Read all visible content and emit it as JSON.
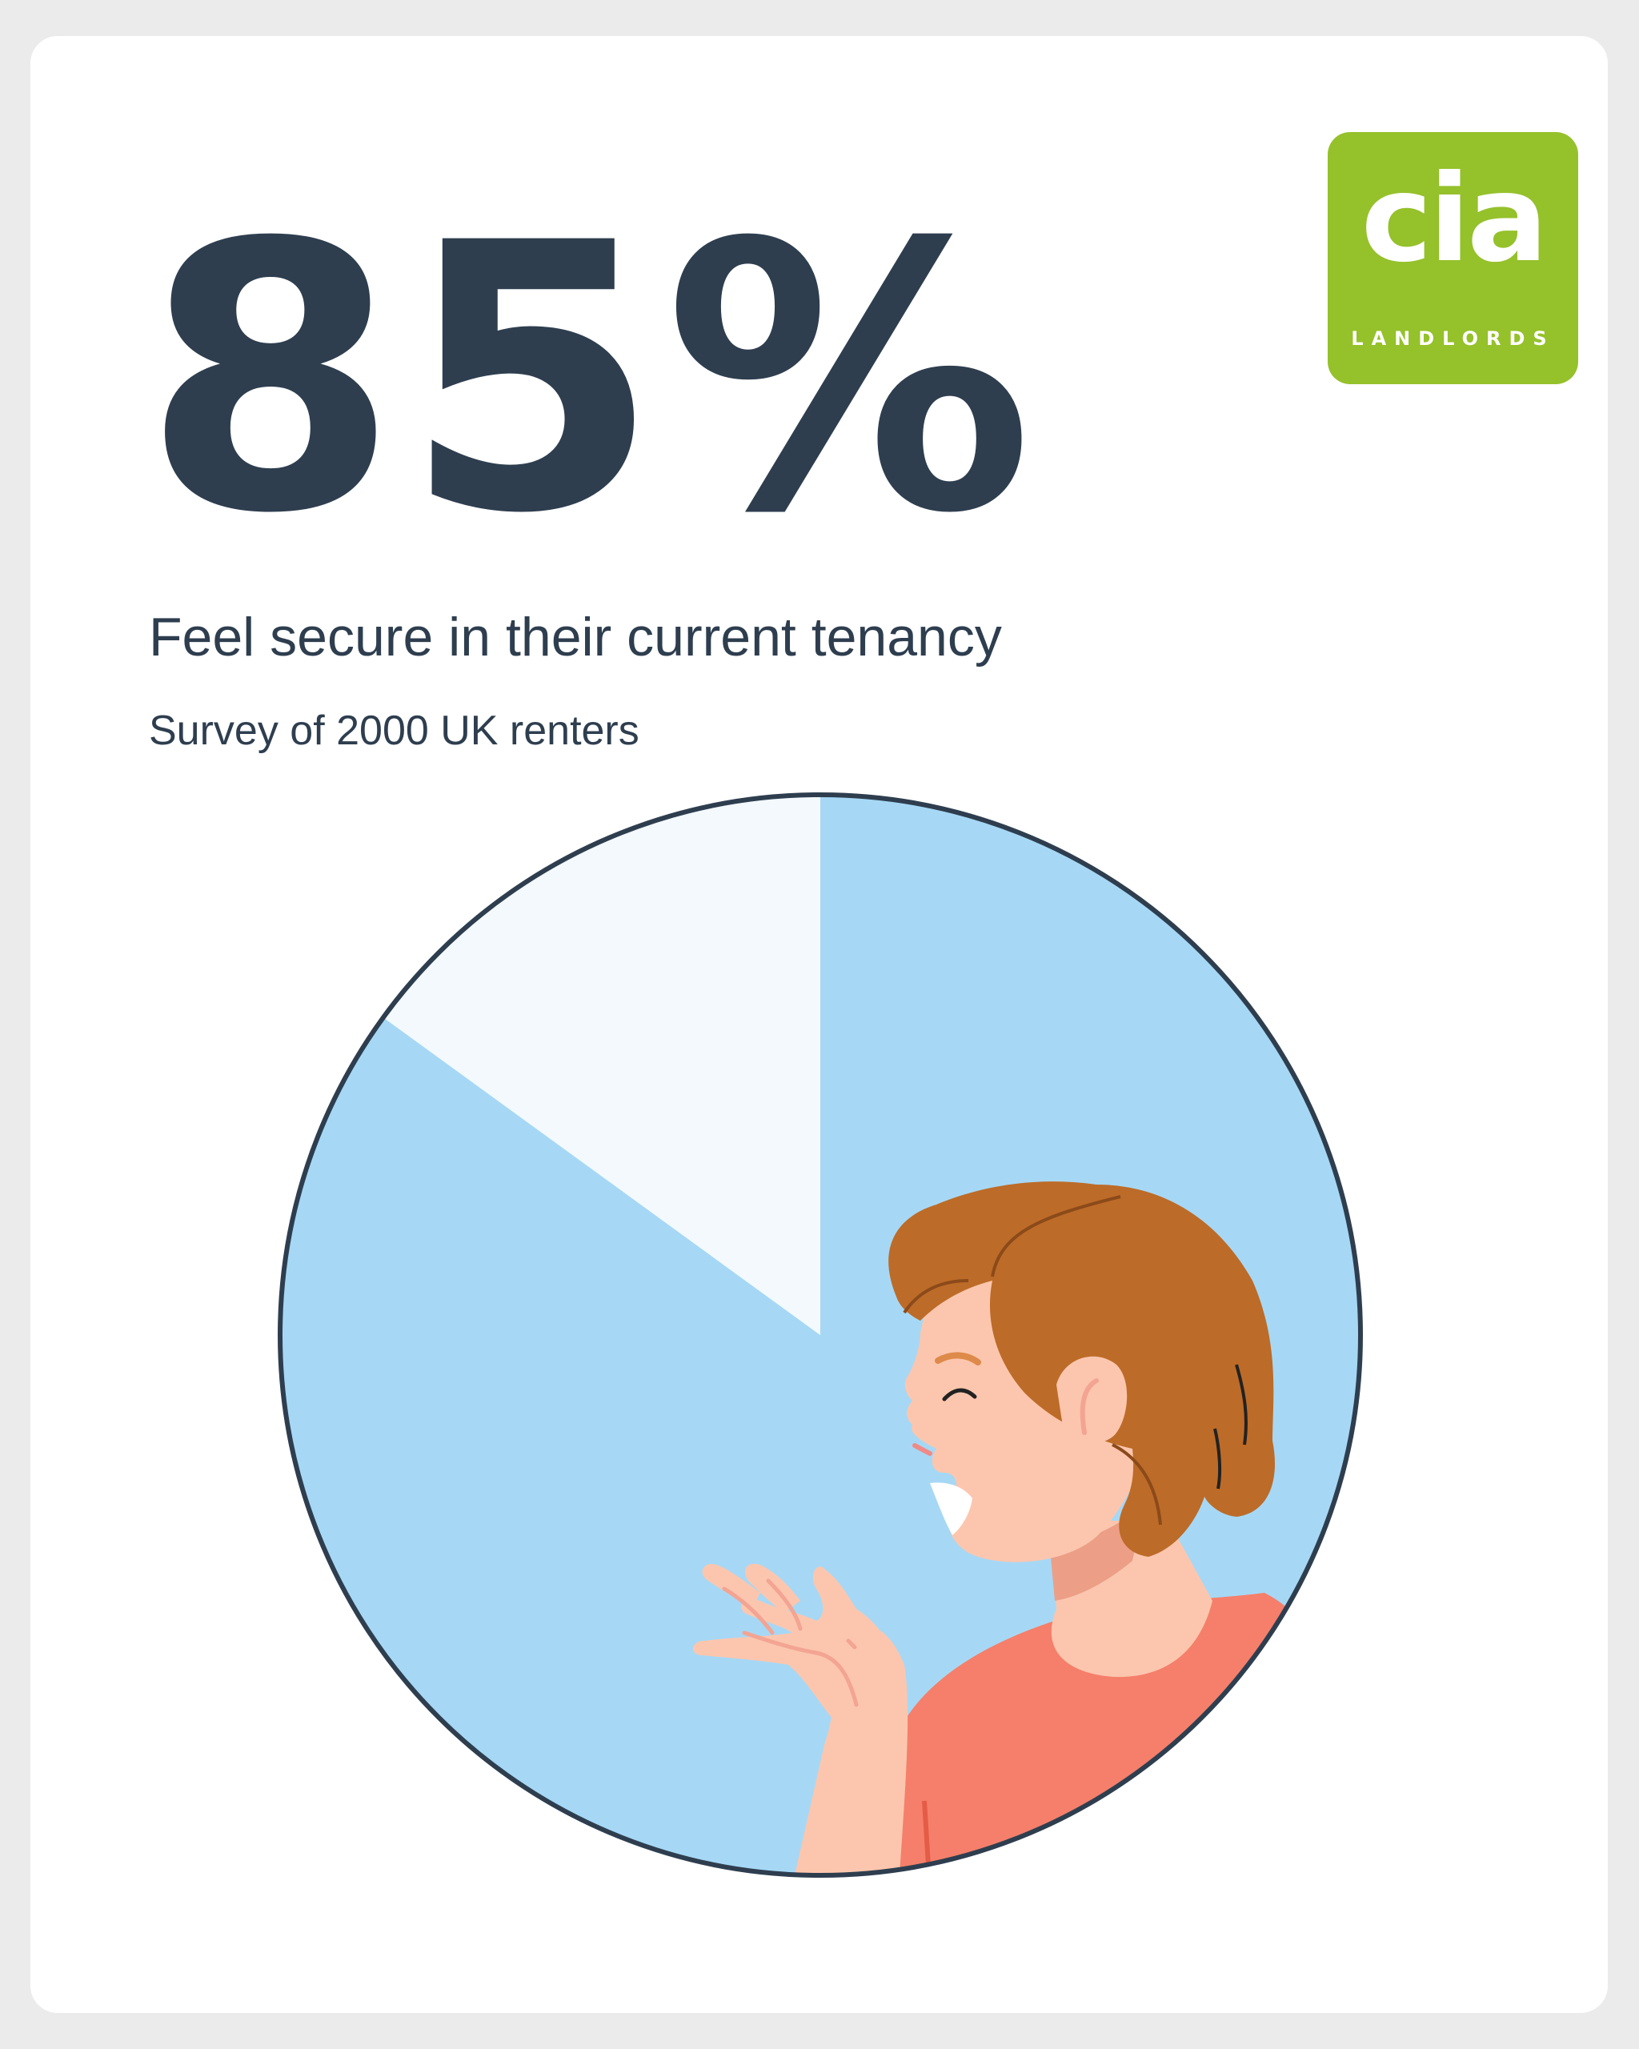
{
  "stat": {
    "value": "85%",
    "headline": "Feel secure in their current tenancy",
    "source": "Survey of 2000 UK renters"
  },
  "logo": {
    "word": "cia",
    "subtitle": "LANDLORDS",
    "color": "#95c12b"
  },
  "colors": {
    "text": "#2e3e4f",
    "slice_major": "#a6d8f5",
    "slice_minor": "#f3f9fd",
    "outline": "#2e3e4f",
    "background": "#ebebeb",
    "card": "#ffffff"
  },
  "chart_data": {
    "type": "pie",
    "slices": [
      {
        "value": 85,
        "color": "#a6d8f5"
      },
      {
        "value": 15,
        "color": "#f3f9fd"
      }
    ],
    "start": "12 o'clock",
    "direction": "clockwise",
    "illustration": "person-laughing"
  }
}
